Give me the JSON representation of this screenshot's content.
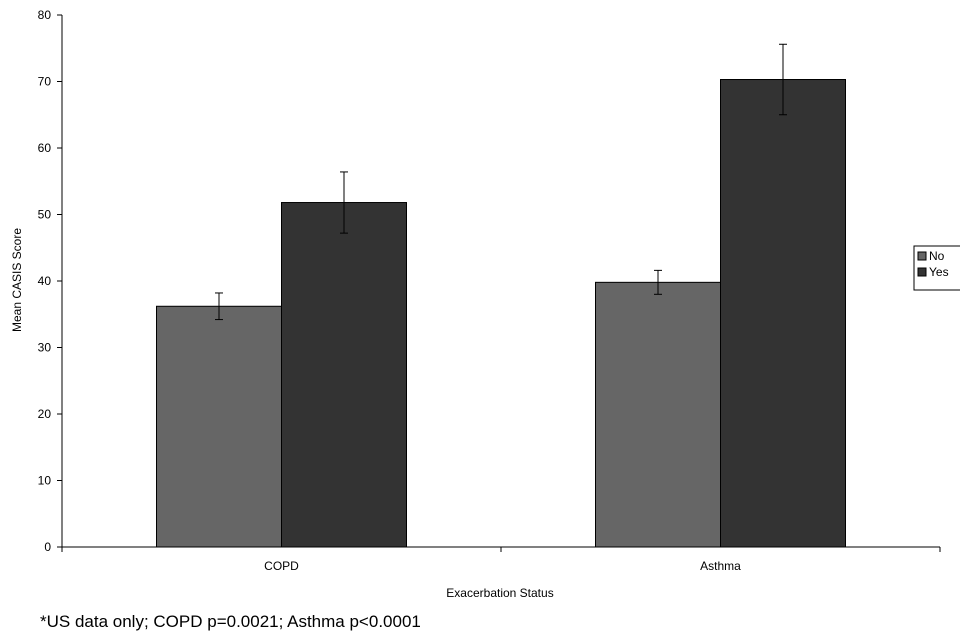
{
  "chart_data": {
    "type": "bar",
    "xlabel": "Exacerbation Status",
    "ylabel": "Mean CASIS Score",
    "ylim": [
      0,
      80
    ],
    "yticks": [
      0,
      10,
      20,
      30,
      40,
      50,
      60,
      70,
      80
    ],
    "categories": [
      "COPD",
      "Asthma"
    ],
    "series": [
      {
        "name": "No",
        "color": "#666666",
        "values": [
          36.2,
          39.8
        ],
        "error": [
          2.0,
          1.8
        ]
      },
      {
        "name": "Yes",
        "color": "#333333",
        "values": [
          51.8,
          70.3
        ],
        "error": [
          4.6,
          5.3
        ]
      }
    ],
    "legend_position": "right",
    "grid": false
  },
  "footnote": "*US data only; COPD p=0.0021; Asthma p<0.0001"
}
